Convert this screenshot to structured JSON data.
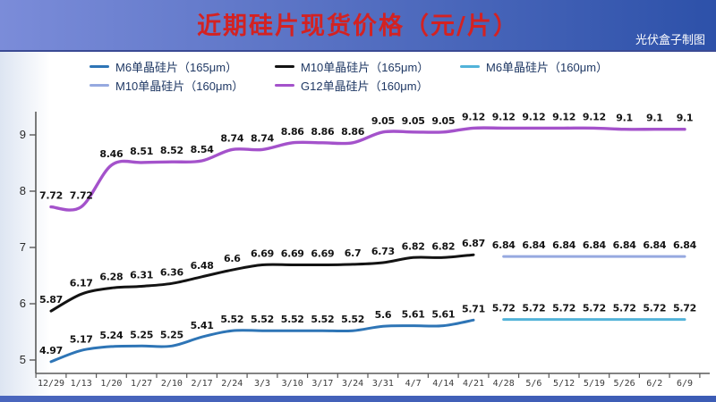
{
  "header": {
    "title": "近期硅片现货价格（元/片）",
    "credit": "光伏盒子制图"
  },
  "theme": {
    "banner_left": "#7b8cd9",
    "banner_right": "#2d51a9",
    "title": "#d32222",
    "credit": "#ffffff",
    "bottom_bar": "#3c5cb5",
    "legend_text": "#1f3864",
    "axis": "#5a5a5a",
    "label": "#141414"
  },
  "legend": {
    "rows": [
      [
        0,
        1,
        2
      ],
      [
        3,
        4
      ]
    ]
  },
  "chart_data": {
    "type": "line",
    "title": "近期硅片现货价格（元/片）",
    "xlabel": "",
    "ylabel": "",
    "ylim": [
      5,
      9.5
    ],
    "yticks": [
      5,
      6,
      7,
      8,
      9
    ],
    "grid": false,
    "legend_position": "top",
    "categories": [
      "12/29",
      "1/13",
      "1/20",
      "1/27",
      "2/10",
      "2/17",
      "2/24",
      "3/3",
      "3/10",
      "3/17",
      "3/24",
      "3/31",
      "4/7",
      "4/14",
      "4/21",
      "4/28",
      "5/6",
      "5/12",
      "5/19",
      "5/26",
      "6/2",
      "6/9"
    ],
    "series": [
      {
        "id": "m6-165",
        "name": "M6单晶硅片（165μm）",
        "color": "#2e75b6",
        "width": 3,
        "start": 0,
        "values": [
          4.97,
          5.17,
          5.24,
          5.25,
          5.25,
          5.41,
          5.52,
          5.52,
          5.52,
          5.52,
          5.52,
          5.6,
          5.61,
          5.61,
          5.71
        ]
      },
      {
        "id": "m10-165",
        "name": "M10单晶硅片（165μm）",
        "color": "#131313",
        "width": 3,
        "start": 0,
        "values": [
          5.87,
          6.17,
          6.28,
          6.31,
          6.36,
          6.48,
          6.6,
          6.69,
          6.69,
          6.69,
          6.7,
          6.73,
          6.82,
          6.82,
          6.87
        ]
      },
      {
        "id": "m6-160",
        "name": "M6单晶硅片（160μm）",
        "color": "#52b3d9",
        "width": 3,
        "start": 15,
        "values": [
          5.72,
          5.72,
          5.72,
          5.72,
          5.72,
          5.72,
          5.72
        ]
      },
      {
        "id": "m10-160",
        "name": "M10单晶硅片（160μm）",
        "color": "#96a9e0",
        "width": 3,
        "start": 15,
        "values": [
          6.84,
          6.84,
          6.84,
          6.84,
          6.84,
          6.84,
          6.84
        ]
      },
      {
        "id": "g12-160",
        "name": "G12单晶硅片（160μm）",
        "color": "#a452cb",
        "width": 3.4,
        "start": 0,
        "values": [
          7.72,
          7.72,
          8.46,
          8.51,
          8.52,
          8.54,
          8.74,
          8.74,
          8.86,
          8.86,
          8.86,
          9.05,
          9.05,
          9.05,
          9.12,
          9.12,
          9.12,
          9.12,
          9.12,
          9.1,
          9.1,
          9.1
        ]
      }
    ]
  }
}
